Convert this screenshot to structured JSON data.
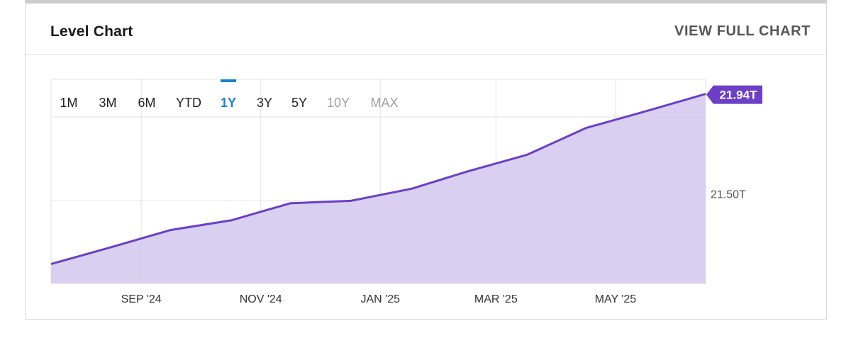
{
  "card": {
    "title": "Level Chart",
    "view_full_label": "VIEW FULL CHART"
  },
  "ranges": [
    {
      "label": "1M",
      "state": "normal"
    },
    {
      "label": "3M",
      "state": "normal"
    },
    {
      "label": "6M",
      "state": "normal"
    },
    {
      "label": "YTD",
      "state": "normal"
    },
    {
      "label": "1Y",
      "state": "active"
    },
    {
      "label": "3Y",
      "state": "normal"
    },
    {
      "label": "5Y",
      "state": "normal"
    },
    {
      "label": "10Y",
      "state": "disabled"
    },
    {
      "label": "MAX",
      "state": "disabled"
    }
  ],
  "colors": {
    "line": "#6c3fc6",
    "fill": "#d7ccf0",
    "active": "#1a7fd1",
    "disabled": "#a0a0a0",
    "text": "#222222",
    "grid": "#e3e3e3"
  },
  "chart_data": {
    "type": "area",
    "x": [
      "2024-07-31",
      "2024-08-31",
      "2024-09-30",
      "2024-10-31",
      "2024-11-30",
      "2024-12-31",
      "2025-01-31",
      "2025-02-28",
      "2025-03-31",
      "2025-04-30",
      "2025-05-31",
      "2025-06-30"
    ],
    "values": [
      21.24,
      21.31,
      21.38,
      21.42,
      21.49,
      21.5,
      21.55,
      21.62,
      21.69,
      21.8,
      21.87,
      21.94
    ],
    "x_ticks": [
      {
        "x": "2024-09-15",
        "label": "SEP '24"
      },
      {
        "x": "2024-11-15",
        "label": "NOV '24"
      },
      {
        "x": "2025-01-15",
        "label": "JAN '25"
      },
      {
        "x": "2025-03-15",
        "label": "MAR '25"
      },
      {
        "x": "2025-05-15",
        "label": "MAY '25"
      }
    ],
    "y_ticks": [
      {
        "value": 21.5,
        "label": "21.50T"
      }
    ],
    "last_value_label": "21.94T",
    "ylim": [
      21.16,
      22.0
    ],
    "grid": true
  }
}
